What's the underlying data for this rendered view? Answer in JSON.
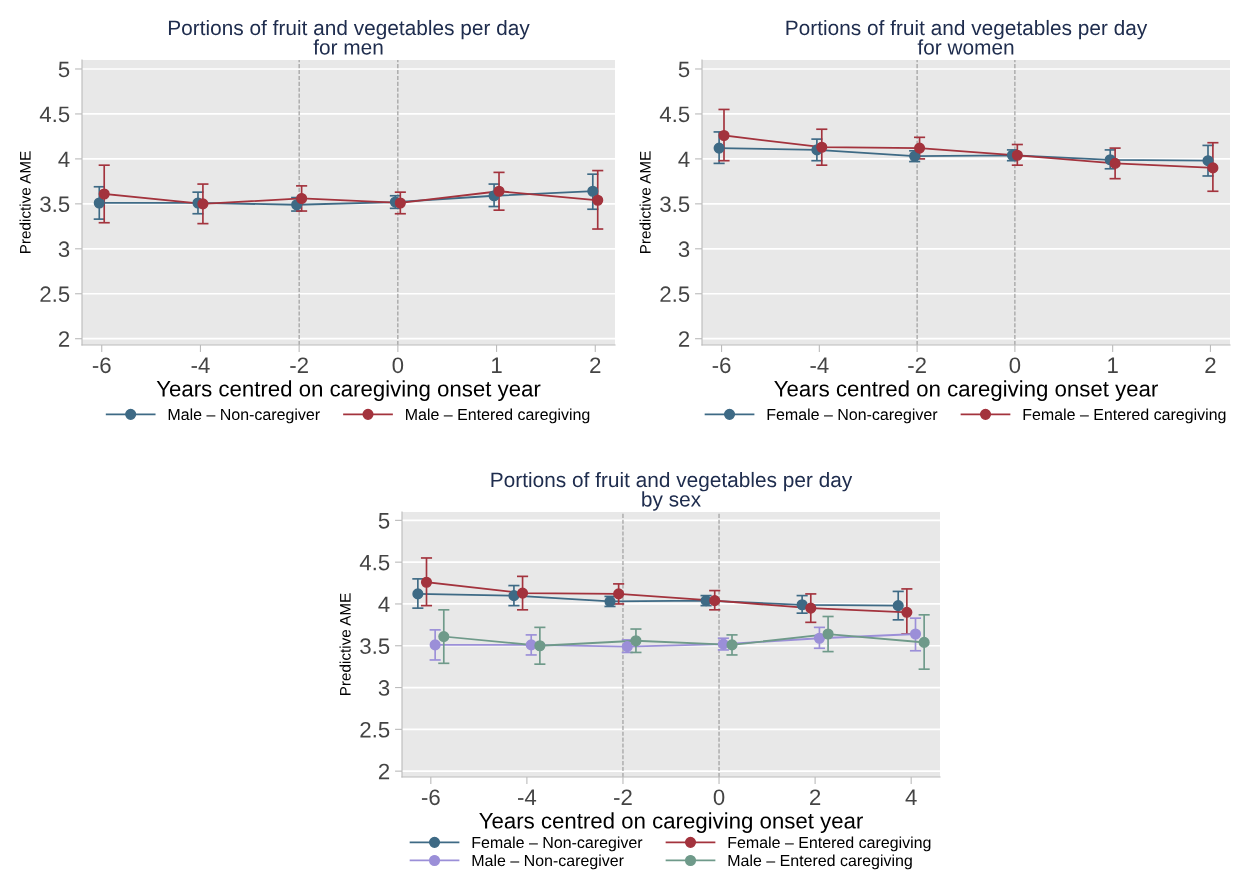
{
  "chart_data": [
    {
      "type": "line",
      "title": "Portions of fruit and vegetables per day\nfor men",
      "xlabel": "Years centred on caregiving onset year",
      "ylabel": "Predictive AME",
      "categories": [
        "-6",
        "-4",
        "-2",
        "0",
        "1",
        "2"
      ],
      "ylim": [
        1.93,
        5.1
      ],
      "yticks": [
        2,
        2.5,
        3,
        3.5,
        4,
        4.5,
        5
      ],
      "grid": "y",
      "legend": "bottom",
      "marker": "circle",
      "line_style": "solid",
      "ref_lines": [
        {
          "axis": "x",
          "value": "-2",
          "line_style": "dashed",
          "color": "#999999"
        },
        {
          "axis": "x",
          "value": "0",
          "line_style": "dashed",
          "color": "#999999"
        }
      ],
      "series": [
        {
          "name": "Male – Non-caregiver",
          "color": "#3e6a85",
          "values": [
            3.51,
            3.51,
            3.49,
            3.52,
            3.59,
            3.64
          ],
          "errors": [
            [
              3.33,
              3.69
            ],
            [
              3.39,
              3.63
            ],
            [
              3.42,
              3.57
            ],
            [
              3.45,
              3.59
            ],
            [
              3.47,
              3.72
            ],
            [
              3.44,
              3.83
            ]
          ]
        },
        {
          "name": "Male – Entered caregiving",
          "color": "#a3333d",
          "values": [
            3.61,
            3.5,
            3.56,
            3.51,
            3.64,
            3.54
          ],
          "errors": [
            [
              3.29,
              3.93
            ],
            [
              3.28,
              3.72
            ],
            [
              3.42,
              3.7
            ],
            [
              3.39,
              3.63
            ],
            [
              3.43,
              3.85
            ],
            [
              3.22,
              3.87
            ]
          ]
        }
      ]
    },
    {
      "type": "line",
      "title": "Portions of fruit and vegetables per day\nfor women",
      "xlabel": "Years centred on caregiving onset year",
      "ylabel": "Predictive AME",
      "categories": [
        "-6",
        "-4",
        "-2",
        "0",
        "1",
        "2"
      ],
      "ylim": [
        1.93,
        5.1
      ],
      "yticks": [
        2,
        2.5,
        3,
        3.5,
        4,
        4.5,
        5
      ],
      "grid": "y",
      "legend": "bottom",
      "marker": "circle",
      "line_style": "solid",
      "ref_lines": [
        {
          "axis": "x",
          "value": "-2",
          "line_style": "dashed",
          "color": "#999999"
        },
        {
          "axis": "x",
          "value": "0",
          "line_style": "dashed",
          "color": "#999999"
        }
      ],
      "series": [
        {
          "name": "Female – Non-caregiver",
          "color": "#3e6a85",
          "values": [
            4.12,
            4.1,
            4.03,
            4.04,
            3.99,
            3.98
          ],
          "errors": [
            [
              3.95,
              4.3
            ],
            [
              3.98,
              4.22
            ],
            [
              3.97,
              4.09
            ],
            [
              3.98,
              4.1
            ],
            [
              3.89,
              4.1
            ],
            [
              3.81,
              4.15
            ]
          ]
        },
        {
          "name": "Female – Entered caregiving",
          "color": "#a3333d",
          "values": [
            4.26,
            4.13,
            4.12,
            4.04,
            3.95,
            3.9
          ],
          "errors": [
            [
              3.98,
              4.55
            ],
            [
              3.93,
              4.33
            ],
            [
              4.0,
              4.24
            ],
            [
              3.93,
              4.16
            ],
            [
              3.78,
              4.12
            ],
            [
              3.64,
              4.18
            ]
          ]
        }
      ]
    },
    {
      "type": "line",
      "title": "Portions of fruit and vegetables per day\nby sex",
      "xlabel": "Years centred on caregiving onset year",
      "ylabel": "Predictive AME",
      "categories": [
        "-6",
        "-4",
        "-2",
        "0",
        "2",
        "4"
      ],
      "ylim": [
        1.93,
        5.1
      ],
      "yticks": [
        2,
        2.5,
        3,
        3.5,
        4,
        4.5,
        5
      ],
      "grid": "y",
      "legend": "bottom",
      "marker": "circle",
      "line_style": "solid",
      "ref_lines": [
        {
          "axis": "x",
          "value": "-2",
          "line_style": "dashed",
          "color": "#999999"
        },
        {
          "axis": "x",
          "value": "0",
          "line_style": "dashed",
          "color": "#999999"
        }
      ],
      "series": [
        {
          "name": "Female – Non-caregiver",
          "color": "#3e6a85",
          "values": [
            4.12,
            4.1,
            4.03,
            4.04,
            3.99,
            3.98
          ],
          "errors": [
            [
              3.95,
              4.3
            ],
            [
              3.98,
              4.22
            ],
            [
              3.97,
              4.09
            ],
            [
              3.98,
              4.1
            ],
            [
              3.89,
              4.1
            ],
            [
              3.81,
              4.15
            ]
          ]
        },
        {
          "name": "Female – Entered caregiving",
          "color": "#a3333d",
          "values": [
            4.26,
            4.13,
            4.12,
            4.04,
            3.95,
            3.9
          ],
          "errors": [
            [
              3.98,
              4.55
            ],
            [
              3.93,
              4.33
            ],
            [
              4.0,
              4.24
            ],
            [
              3.93,
              4.16
            ],
            [
              3.78,
              4.12
            ],
            [
              3.64,
              4.18
            ]
          ]
        },
        {
          "name": "Male – Non-caregiver",
          "color": "#9b8fd8",
          "values": [
            3.51,
            3.51,
            3.49,
            3.52,
            3.59,
            3.64
          ],
          "errors": [
            [
              3.33,
              3.69
            ],
            [
              3.39,
              3.63
            ],
            [
              3.42,
              3.57
            ],
            [
              3.45,
              3.59
            ],
            [
              3.47,
              3.72
            ],
            [
              3.44,
              3.83
            ]
          ]
        },
        {
          "name": "Male – Entered caregiving",
          "color": "#6f9a8a",
          "values": [
            3.61,
            3.5,
            3.56,
            3.51,
            3.64,
            3.54
          ],
          "errors": [
            [
              3.29,
              3.93
            ],
            [
              3.28,
              3.72
            ],
            [
              3.42,
              3.7
            ],
            [
              3.39,
              3.63
            ],
            [
              3.43,
              3.85
            ],
            [
              3.22,
              3.87
            ]
          ]
        }
      ]
    }
  ]
}
